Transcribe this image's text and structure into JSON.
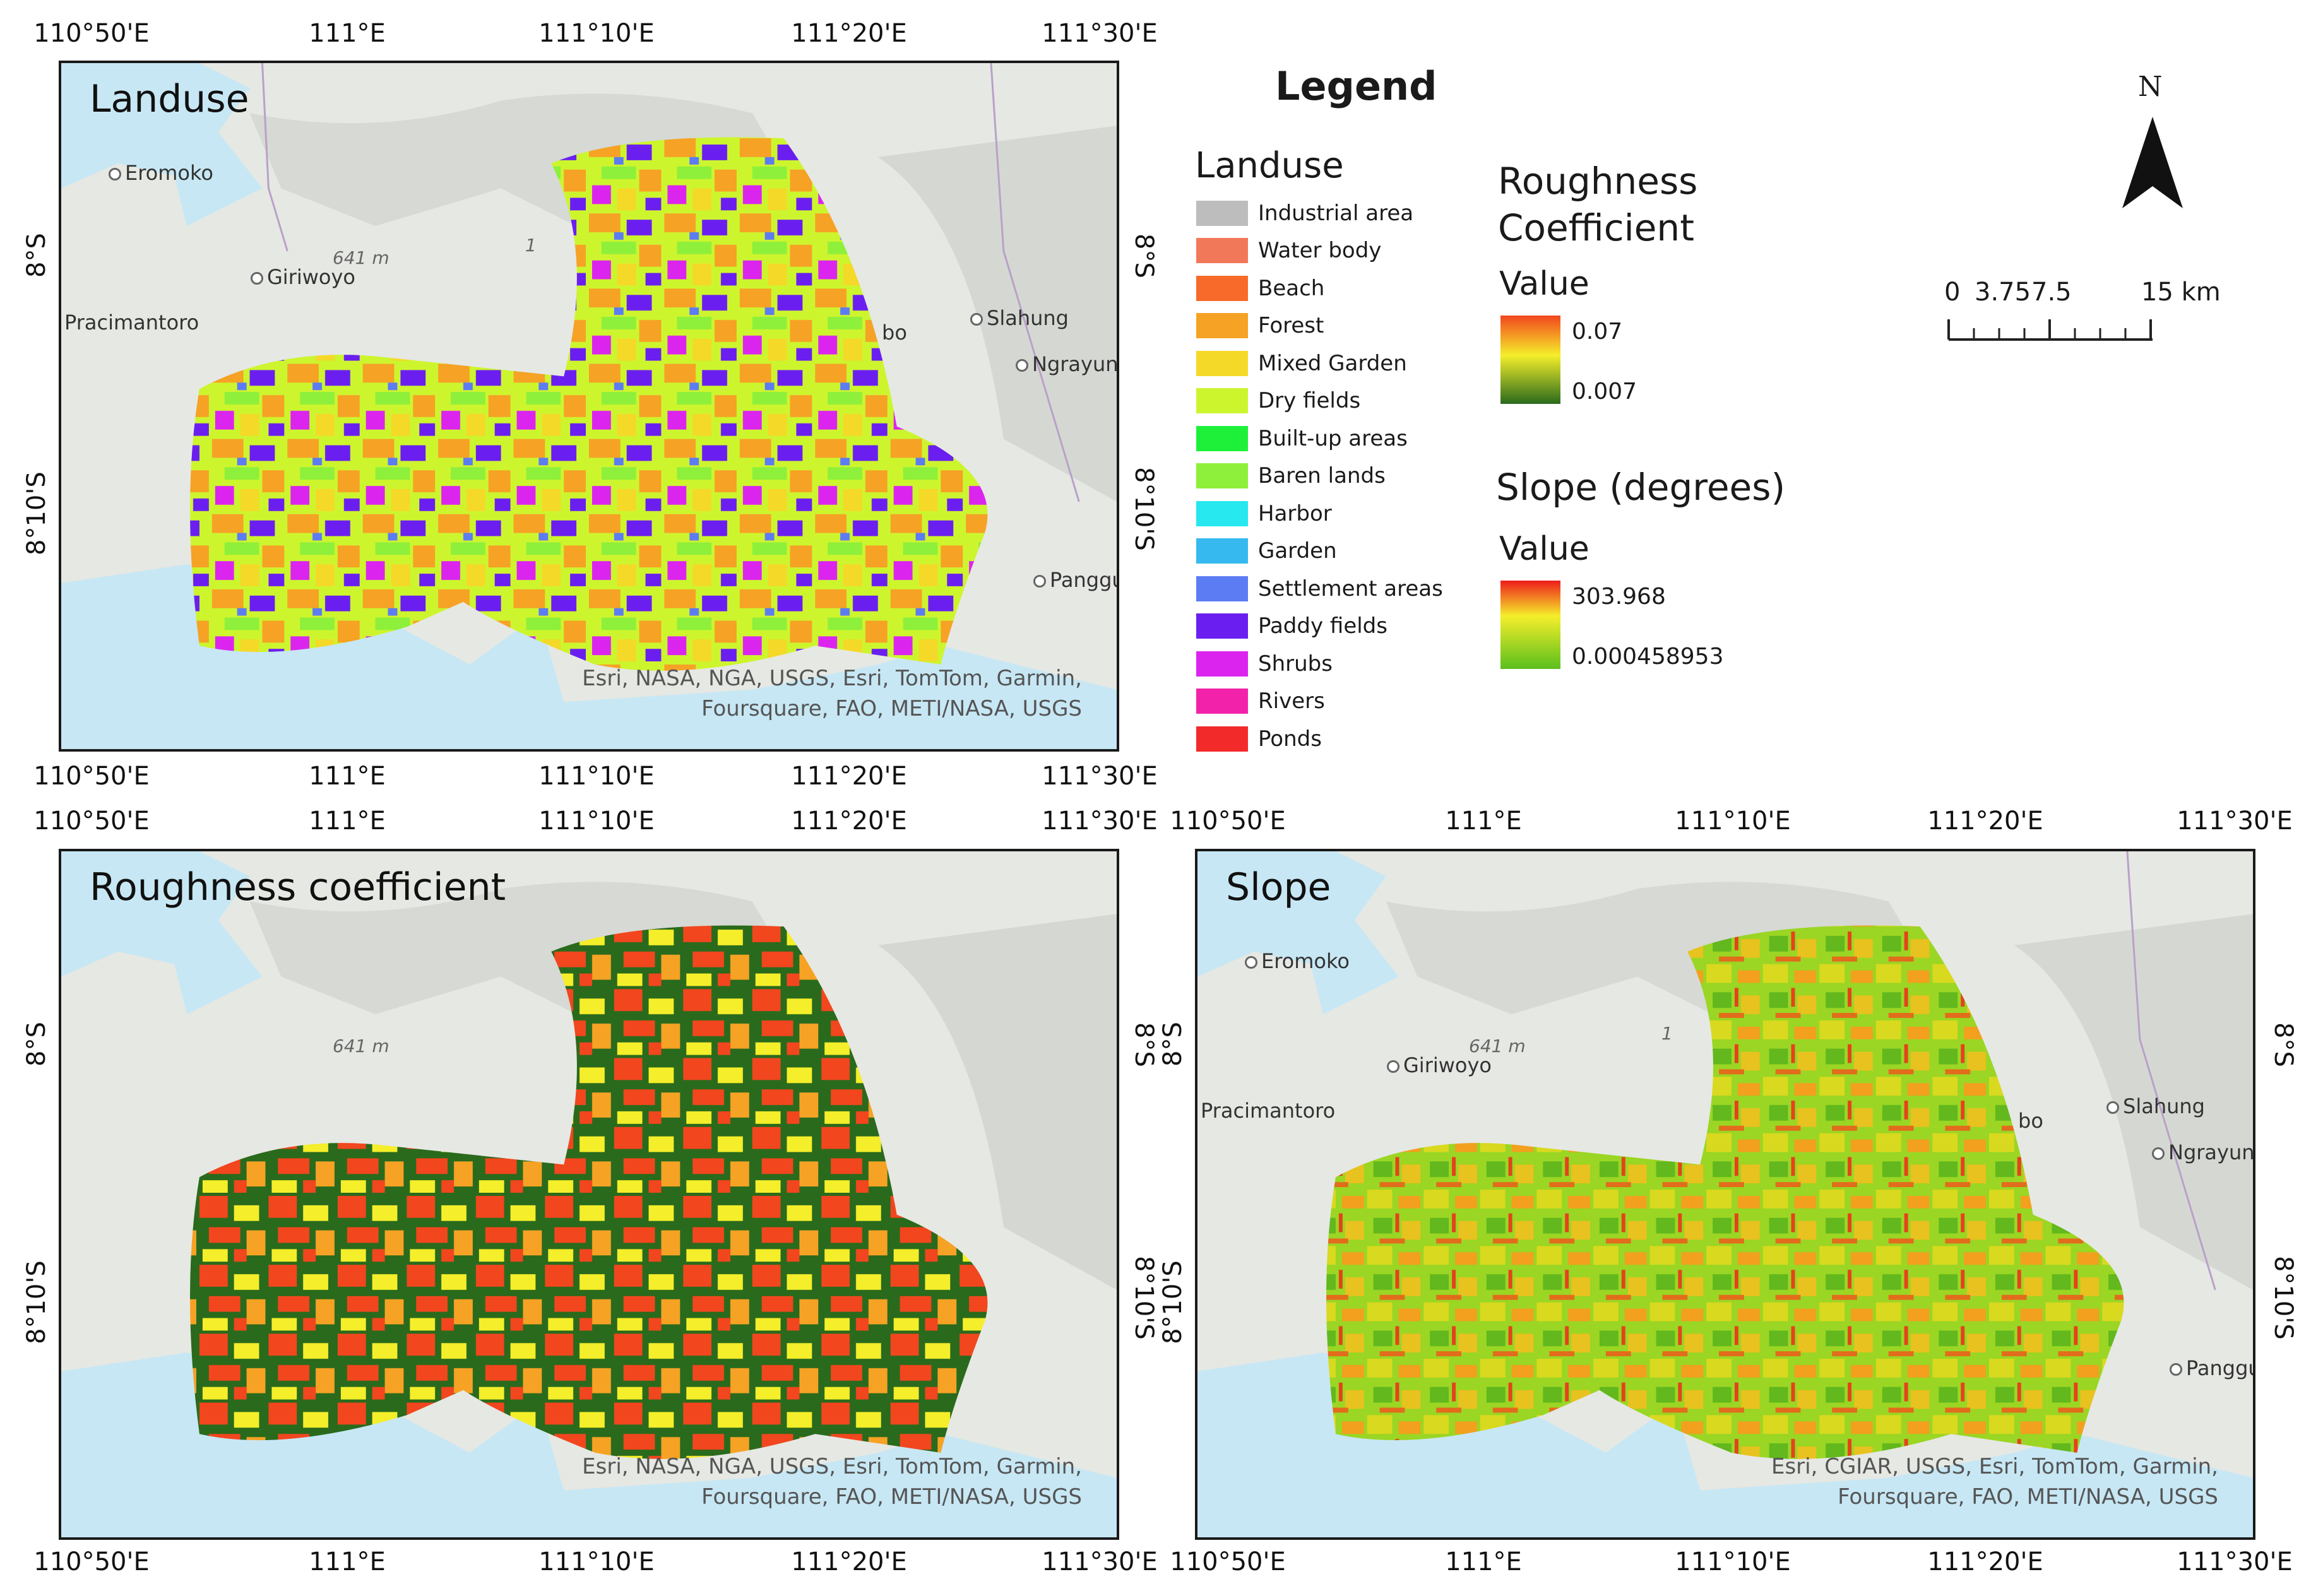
{
  "maps": {
    "landuse": {
      "title": "Landuse",
      "attribution_1": "Esri, NASA, NGA, USGS, Esri, TomTom, Garmin,",
      "attribution_2": "Foursquare, FAO, METI/NASA, USGS"
    },
    "roughness": {
      "title": "Roughness coefficient",
      "attribution_1": "Esri, NASA, NGA, USGS, Esri, TomTom, Garmin,",
      "attribution_2": "Foursquare, FAO, METI/NASA, USGS"
    },
    "slope": {
      "title": "Slope",
      "attribution_1": "Esri, CGIAR, USGS, Esri, TomTom, Garmin,",
      "attribution_2": "Foursquare, FAO, METI/NASA, USGS"
    }
  },
  "graticule": {
    "lon_labels": [
      "110°50'E",
      "111°E",
      "111°10'E",
      "111°20'E",
      "111°30'E"
    ],
    "lat_labels": [
      "8°S",
      "8°10'S"
    ]
  },
  "places": {
    "eromoko": "Eromoko",
    "giriwoyo": "Giriwoyo",
    "pracimantoro": "Pracimantoro",
    "slahung": "Slahung",
    "ngrayun": "Ngrayun",
    "panggul": "Panggu",
    "bo": "bo",
    "elev": "641 m",
    "peak": "1"
  },
  "legend": {
    "title": "Legend",
    "landuse_heading": "Landuse",
    "landuse_items": [
      {
        "label": "Industrial area",
        "color": "#bdbdbd"
      },
      {
        "label": "Water body",
        "color": "#f2785a"
      },
      {
        "label": "Beach",
        "color": "#f76a2a"
      },
      {
        "label": "Forest",
        "color": "#f6a225"
      },
      {
        "label": "Mixed Garden",
        "color": "#f5d928"
      },
      {
        "label": "Dry fields",
        "color": "#cdf52e"
      },
      {
        "label": "Built-up areas",
        "color": "#1ef03a"
      },
      {
        "label": "Baren lands",
        "color": "#8ef03a"
      },
      {
        "label": "Harbor",
        "color": "#27e8ef"
      },
      {
        "label": "Garden",
        "color": "#35b9ef"
      },
      {
        "label": "Settlement areas",
        "color": "#5b7cf3"
      },
      {
        "label": "Paddy fields",
        "color": "#6a1ff0"
      },
      {
        "label": "Shrubs",
        "color": "#db25ef"
      },
      {
        "label": "Rivers",
        "color": "#f322aa"
      },
      {
        "label": "Ponds",
        "color": "#f32a2a"
      }
    ],
    "roughness_heading_line1": "Roughness",
    "roughness_heading_line2": "Coefficient",
    "roughness_value_label": "Value",
    "roughness_max": "0.07",
    "roughness_min": "0.007",
    "slope_heading": "Slope (degrees)",
    "slope_value_label": "Value",
    "slope_max": "303.968",
    "slope_min": "0.000458953"
  },
  "north_arrow": {
    "label": "N"
  },
  "scale_bar": {
    "labels": [
      "0",
      "3.75",
      "7.5",
      "15 km"
    ]
  }
}
